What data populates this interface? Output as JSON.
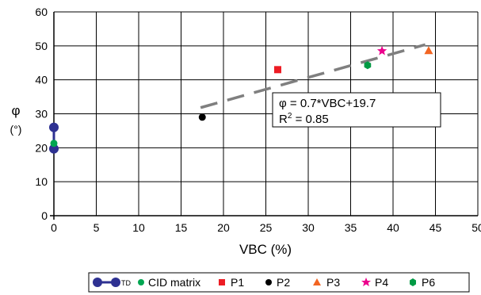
{
  "chart_data": {
    "type": "scatter",
    "xlabel": "VBC (%)",
    "ylabel": "φ",
    "ylabel_unit": "(°)",
    "xlim": [
      0,
      50
    ],
    "ylim": [
      0,
      60
    ],
    "x_ticks": [
      "0",
      "5",
      "10",
      "15",
      "20",
      "25",
      "30",
      "35",
      "40",
      "45",
      "50"
    ],
    "y_ticks": [
      "0",
      "10",
      "20",
      "30",
      "40",
      "50",
      "60"
    ],
    "grid": true,
    "legend_position": "bottom",
    "series": [
      {
        "name": "TD",
        "marker": "circle-line",
        "color": "#2e3192",
        "points": [
          {
            "x": 0,
            "y": 26
          },
          {
            "x": 0,
            "y": 19.7
          }
        ]
      },
      {
        "name": "CID matrix",
        "marker": "circle",
        "color": "#00a651",
        "points": [
          {
            "x": 0,
            "y": 21.3
          }
        ]
      },
      {
        "name": "P1",
        "marker": "square",
        "color": "#ed1c24",
        "points": [
          {
            "x": 26.4,
            "y": 43
          }
        ]
      },
      {
        "name": "P2",
        "marker": "circle",
        "color": "#000000",
        "points": [
          {
            "x": 17.5,
            "y": 29
          }
        ]
      },
      {
        "name": "P3",
        "marker": "triangle",
        "color": "#f26522",
        "points": [
          {
            "x": 44.2,
            "y": 48.5
          }
        ]
      },
      {
        "name": "P4",
        "marker": "star",
        "color": "#ec008c",
        "points": [
          {
            "x": 38.7,
            "y": 48.5
          }
        ]
      },
      {
        "name": "P6",
        "marker": "hexagon",
        "color": "#009a44",
        "points": [
          {
            "x": 37,
            "y": 44.3
          }
        ]
      }
    ],
    "trendline": {
      "x_range": [
        17.3,
        43.8
      ],
      "slope": 0.7,
      "intercept": 19.7,
      "color": "#7f7f7f",
      "equation_label": "φ  = 0.7*VBC+19.7",
      "r2_label_prefix": "R",
      "r2_label_sup": "2",
      "r2_label_suffix": " = 0.85"
    }
  },
  "legend": {
    "td_label": "TD",
    "cid_label": "CID matrix",
    "p1_label": "P1",
    "p2_label": "P2",
    "p3_label": "P3",
    "p4_label": "P4",
    "p6_label": "P6"
  }
}
